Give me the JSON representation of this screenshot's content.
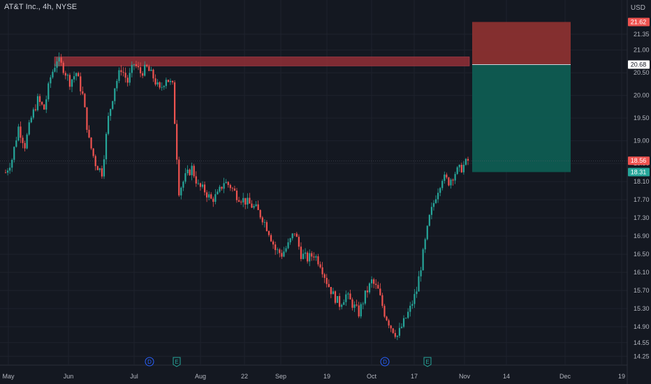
{
  "header": {
    "title": "AT&T Inc., 4h, NYSE",
    "currency": "USD"
  },
  "colors": {
    "background": "#141821",
    "grid": "#1e222d",
    "up": "#26a69a",
    "down": "#ef5350",
    "resistance_zone": "#8b2e35",
    "stop_zone": "#8a3030",
    "target_zone": "#0e5c52",
    "axis_text": "#b2b5be"
  },
  "chart_data": {
    "type": "candlestick",
    "title": "AT&T Inc., 4h, NYSE",
    "ylim": [
      14.1,
      21.95
    ],
    "y_ticks": [
      "21.35",
      "21.00",
      "20.50",
      "20.00",
      "19.50",
      "19.00",
      "18.50",
      "18.10",
      "17.70",
      "17.30",
      "16.90",
      "16.50",
      "16.10",
      "15.70",
      "15.30",
      "14.90",
      "14.55",
      "14.25"
    ],
    "x_ticks": [
      "May",
      "Jun",
      "Jul",
      "Aug",
      "22",
      "Sep",
      "19",
      "Oct",
      "17",
      "Nov",
      "14",
      "Dec",
      "19"
    ],
    "price_path": [
      [
        0,
        18.3
      ],
      [
        3,
        18.6
      ],
      [
        6,
        19.3
      ],
      [
        9,
        18.9
      ],
      [
        12,
        19.5
      ],
      [
        15,
        19.9
      ],
      [
        18,
        19.7
      ],
      [
        21,
        20.4
      ],
      [
        24,
        20.8
      ],
      [
        27,
        20.6
      ],
      [
        30,
        20.3
      ],
      [
        33,
        20.5
      ],
      [
        36,
        20.0
      ],
      [
        39,
        19.0
      ],
      [
        42,
        18.5
      ],
      [
        45,
        18.3
      ],
      [
        48,
        19.5
      ],
      [
        51,
        20.2
      ],
      [
        54,
        20.6
      ],
      [
        57,
        20.3
      ],
      [
        60,
        20.7
      ],
      [
        63,
        20.5
      ],
      [
        66,
        20.6
      ],
      [
        69,
        20.4
      ],
      [
        72,
        20.1
      ],
      [
        75,
        20.4
      ],
      [
        78,
        20.2
      ],
      [
        81,
        17.9
      ],
      [
        84,
        18.2
      ],
      [
        87,
        18.4
      ],
      [
        90,
        18.0
      ],
      [
        93,
        17.9
      ],
      [
        96,
        17.7
      ],
      [
        99,
        17.8
      ],
      [
        102,
        18.1
      ],
      [
        105,
        18.0
      ],
      [
        108,
        17.8
      ],
      [
        111,
        17.7
      ],
      [
        114,
        17.6
      ],
      [
        117,
        17.5
      ],
      [
        120,
        17.3
      ],
      [
        123,
        17.0
      ],
      [
        126,
        16.6
      ],
      [
        129,
        16.5
      ],
      [
        132,
        16.7
      ],
      [
        135,
        17.0
      ],
      [
        138,
        16.5
      ],
      [
        141,
        16.4
      ],
      [
        144,
        16.5
      ],
      [
        147,
        16.3
      ],
      [
        150,
        15.9
      ],
      [
        153,
        15.6
      ],
      [
        156,
        15.4
      ],
      [
        159,
        15.6
      ],
      [
        162,
        15.4
      ],
      [
        165,
        15.2
      ],
      [
        168,
        15.6
      ],
      [
        171,
        15.9
      ],
      [
        174,
        15.7
      ],
      [
        177,
        15.2
      ],
      [
        180,
        14.9
      ],
      [
        183,
        14.7
      ],
      [
        186,
        15.0
      ],
      [
        189,
        15.3
      ],
      [
        192,
        15.7
      ],
      [
        195,
        16.5
      ],
      [
        198,
        17.3
      ],
      [
        201,
        17.8
      ],
      [
        204,
        18.2
      ],
      [
        207,
        18.1
      ],
      [
        210,
        18.3
      ],
      [
        213,
        18.4
      ],
      [
        216,
        18.56
      ]
    ],
    "resistance_zone": {
      "price_low": 20.65,
      "price_high": 20.85
    },
    "position": {
      "stop": 21.62,
      "entry": 20.68,
      "target": 18.31,
      "type": "short"
    },
    "last_price": 18.56,
    "price_tags": [
      {
        "label": "21.62",
        "price": 21.62,
        "bg": "#ef5350",
        "fg": "#ffffff"
      },
      {
        "label": "20.68",
        "price": 20.68,
        "bg": "#ffffff",
        "fg": "#131722"
      },
      {
        "label": "18.56",
        "price": 18.56,
        "bg": "#ef5350",
        "fg": "#ffffff"
      },
      {
        "label": "18.31",
        "price": 18.31,
        "bg": "#26a69a",
        "fg": "#ffffff"
      }
    ],
    "events": [
      {
        "label": "D",
        "kind": "dividend",
        "color": "#2962ff"
      },
      {
        "label": "E",
        "kind": "earnings",
        "color": "#26a69a"
      },
      {
        "label": "D",
        "kind": "dividend",
        "color": "#2962ff"
      },
      {
        "label": "E",
        "kind": "earnings",
        "color": "#26a69a"
      }
    ]
  }
}
